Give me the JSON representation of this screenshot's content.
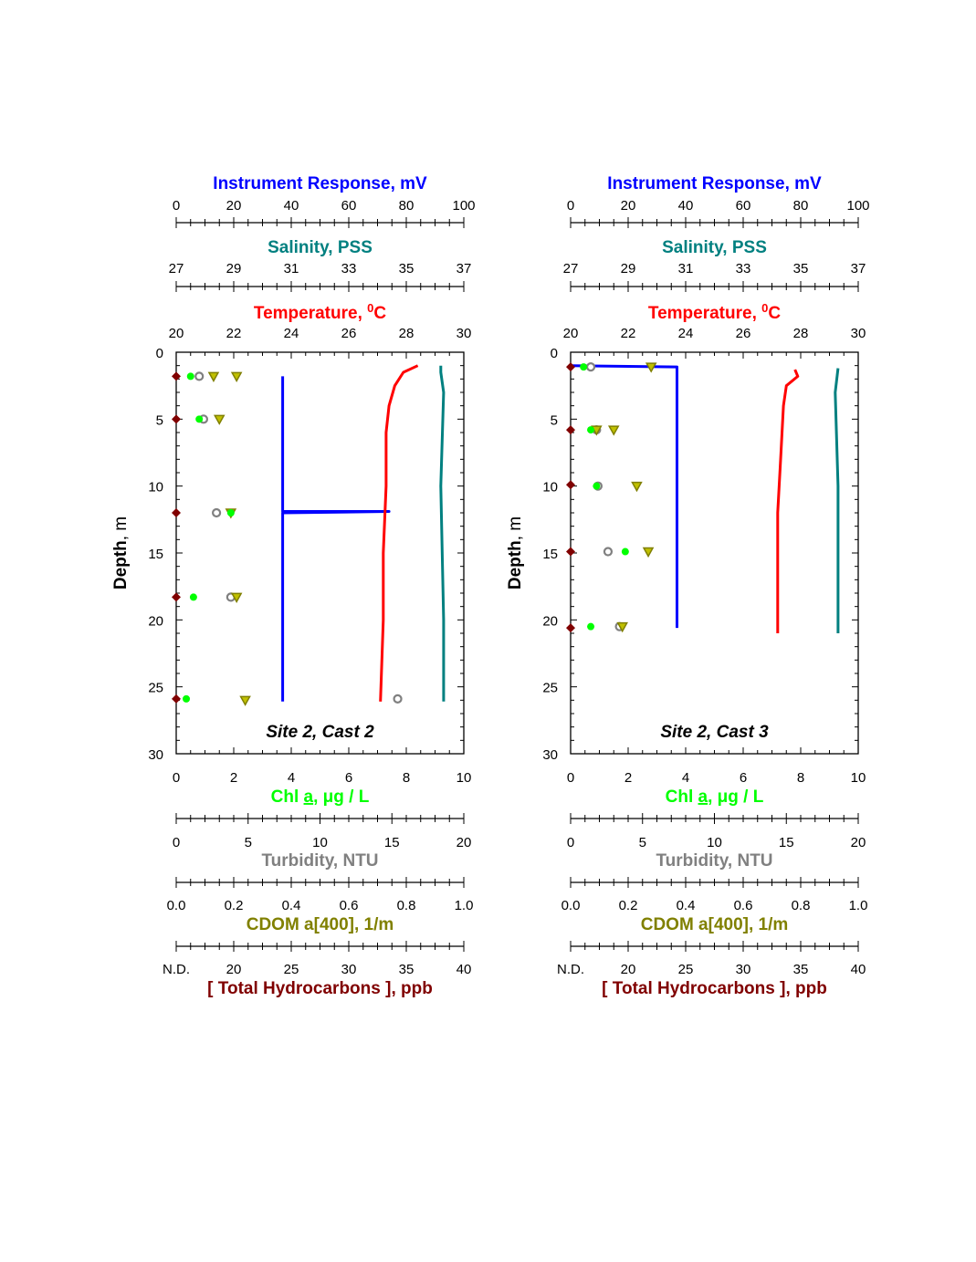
{
  "colors": {
    "instrument": "#0000ff",
    "salinity": "#008080",
    "temperature": "#ff0000",
    "chl": "#00ff00",
    "turbidity": "#808080",
    "cdom": "#808000",
    "thc": "#800000"
  },
  "axes": {
    "instrument": {
      "label_bold": "Instrument Response",
      "label_rest": ", mV",
      "min": 0,
      "max": 100,
      "ticks": [
        "0",
        "20",
        "40",
        "60",
        "80",
        "100"
      ]
    },
    "salinity": {
      "label_bold": "Salinity",
      "label_rest": ", PSS",
      "min": 27,
      "max": 37,
      "ticks": [
        "27",
        "29",
        "31",
        "33",
        "35",
        "37"
      ]
    },
    "temperature": {
      "label_bold": "Temperature",
      "label_rest": ", ",
      "label_sup": "0",
      "label_end": "C",
      "min": 20,
      "max": 30,
      "ticks": [
        "20",
        "22",
        "24",
        "26",
        "28",
        "30"
      ]
    },
    "depth": {
      "label_bold": "Depth",
      "label_rest": ", m",
      "min": 0,
      "max": 30,
      "ticks": [
        "0",
        "5",
        "10",
        "15",
        "20",
        "25",
        "30"
      ]
    },
    "chl": {
      "label_a": "Chl ",
      "label_u": "a",
      "label_rest": ", μg / L",
      "min": 0,
      "max": 10,
      "ticks": [
        "0",
        "2",
        "4",
        "6",
        "8",
        "10"
      ]
    },
    "turbidity": {
      "label_bold": "Turbidity",
      "label_rest": ", NTU",
      "min": 0,
      "max": 20,
      "ticks": [
        "0",
        "5",
        "10",
        "15",
        "20"
      ]
    },
    "cdom": {
      "label_bold": "CDOM a[400]",
      "label_rest": ", 1/m",
      "min": 0,
      "max": 1,
      "ticks": [
        "0.0",
        "0.2",
        "0.4",
        "0.6",
        "0.8",
        "1.0"
      ]
    },
    "thc": {
      "label_bold": "[ Total Hydrocarbons ]",
      "label_rest": ", ppb",
      "ticks": [
        "N.D.",
        "20",
        "25",
        "30",
        "35",
        "40"
      ]
    }
  },
  "chart_data": [
    {
      "type": "scatter",
      "title": "Site 2, Cast 2",
      "y_axis": "Depth, m",
      "ylim": [
        0,
        30
      ],
      "y_reversed": true,
      "instrument_profile": [
        [
          1.8,
          37
        ],
        [
          11.8,
          37
        ],
        [
          11.9,
          37
        ],
        [
          11.9,
          74
        ],
        [
          12.0,
          37
        ],
        [
          26.1,
          37
        ]
      ],
      "temperature_profile": [
        [
          1.0,
          28.4
        ],
        [
          1.5,
          27.9
        ],
        [
          2.5,
          27.6
        ],
        [
          4.0,
          27.4
        ],
        [
          6.0,
          27.3
        ],
        [
          10.0,
          27.3
        ],
        [
          15.0,
          27.2
        ],
        [
          20.0,
          27.2
        ],
        [
          26.1,
          27.1
        ]
      ],
      "salinity_profile": [
        [
          1.0,
          36.2
        ],
        [
          1.5,
          36.2
        ],
        [
          3.0,
          36.3
        ],
        [
          10.0,
          36.2
        ],
        [
          20.0,
          36.3
        ],
        [
          26.1,
          36.3
        ]
      ],
      "chl": [
        [
          1.8,
          0.5
        ],
        [
          5.0,
          0.8
        ],
        [
          12.0,
          1.9
        ],
        [
          18.3,
          0.6
        ],
        [
          25.9,
          0.35
        ]
      ],
      "turbidity": [
        [
          1.8,
          1.6
        ],
        [
          5.0,
          1.9
        ],
        [
          12.0,
          2.8
        ],
        [
          18.3,
          3.8
        ],
        [
          25.9,
          15.4
        ]
      ],
      "cdom": [
        [
          1.8,
          0.13
        ],
        [
          1.8,
          0.21
        ],
        [
          5.0,
          0.15
        ],
        [
          12.0,
          0.19
        ],
        [
          18.3,
          0.21
        ],
        [
          26.0,
          0.24
        ]
      ],
      "thc_nd": [
        1.8,
        5.0,
        12.0,
        18.3,
        25.9
      ]
    },
    {
      "type": "scatter",
      "title": "Site 2, Cast 3",
      "y_axis": "Depth, m",
      "ylim": [
        0,
        30
      ],
      "y_reversed": true,
      "instrument_profile": [
        [
          1.0,
          0
        ],
        [
          1.1,
          37
        ],
        [
          20.6,
          37
        ]
      ],
      "temperature_profile": [
        [
          1.3,
          27.8
        ],
        [
          1.8,
          27.9
        ],
        [
          2.5,
          27.5
        ],
        [
          4.0,
          27.4
        ],
        [
          8.0,
          27.3
        ],
        [
          12.0,
          27.2
        ],
        [
          16.0,
          27.2
        ],
        [
          21.0,
          27.2
        ]
      ],
      "salinity_profile": [
        [
          1.2,
          36.3
        ],
        [
          3.0,
          36.2
        ],
        [
          10.0,
          36.3
        ],
        [
          15.0,
          36.3
        ],
        [
          21.0,
          36.3
        ]
      ],
      "chl": [
        [
          1.1,
          0.45
        ],
        [
          5.8,
          0.7
        ],
        [
          10.0,
          0.9
        ],
        [
          14.9,
          1.9
        ],
        [
          20.5,
          0.7
        ]
      ],
      "turbidity": [
        [
          1.1,
          1.4
        ],
        [
          5.8,
          1.8
        ],
        [
          10.0,
          1.9
        ],
        [
          14.9,
          2.6
        ],
        [
          20.5,
          3.4
        ]
      ],
      "cdom": [
        [
          1.1,
          0.28
        ],
        [
          5.8,
          0.09
        ],
        [
          5.8,
          0.15
        ],
        [
          10.0,
          0.23
        ],
        [
          14.9,
          0.27
        ],
        [
          20.5,
          0.18
        ]
      ],
      "thc_nd": [
        1.1,
        5.8,
        9.9,
        14.9,
        20.6
      ]
    }
  ]
}
